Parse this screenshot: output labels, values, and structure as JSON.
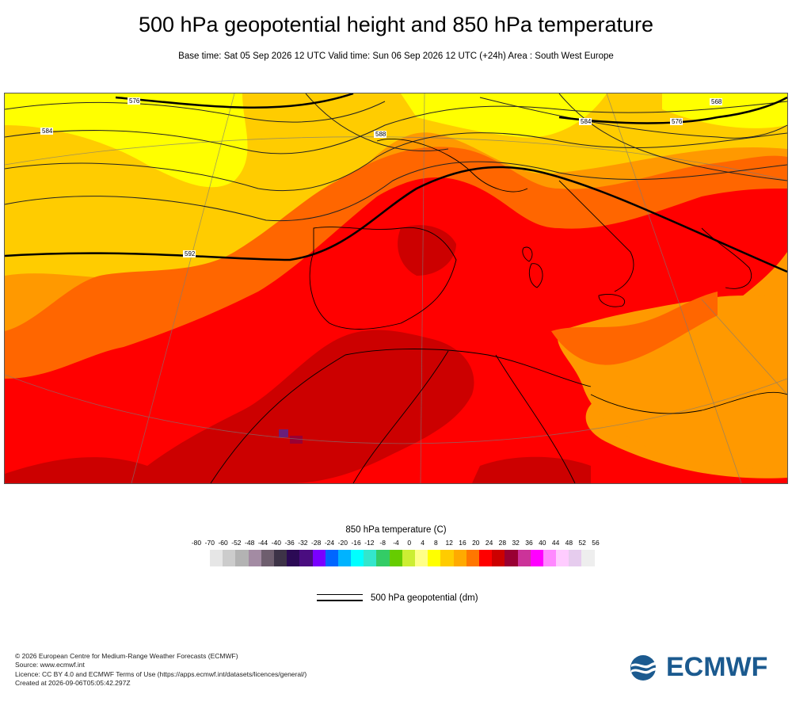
{
  "header": {
    "title": "500 hPa geopotential height and 850 hPa temperature",
    "subtitle": "Base time: Sat 05 Sep 2026 12 UTC Valid time: Sun 06 Sep 2026 12 UTC (+24h) Area : South West Europe"
  },
  "map": {
    "contour_labels": [
      "576",
      "584",
      "588",
      "592",
      "576",
      "584",
      "568"
    ],
    "temperature_fill_colors": {
      "yellow": "#ffff00",
      "light_orange": "#ffcc00",
      "orange": "#ff9900",
      "dark_orange": "#ff6600",
      "red": "#ff0000",
      "dark_red": "#cc0000",
      "maroon": "#990033",
      "purple": "#6a1f7a"
    }
  },
  "legend": {
    "title": "850 hPa temperature (C)",
    "ticks": [
      "-80",
      "-70",
      "-60",
      "-52",
      "-48",
      "-44",
      "-40",
      "-36",
      "-32",
      "-28",
      "-24",
      "-20",
      "-16",
      "-12",
      "-8",
      "-4",
      "0",
      "4",
      "8",
      "12",
      "16",
      "20",
      "24",
      "28",
      "32",
      "36",
      "40",
      "44",
      "48",
      "52",
      "56"
    ],
    "colors": [
      "#e6e6e6",
      "#cccccc",
      "#b3b3b3",
      "#a38ba3",
      "#6e5e6e",
      "#3d3347",
      "#2b0a55",
      "#4a0d80",
      "#7a00ff",
      "#0066ff",
      "#00b3ff",
      "#00ffff",
      "#33e6cc",
      "#33cc66",
      "#66cc00",
      "#ccee33",
      "#ffff88",
      "#ffff00",
      "#ffcc00",
      "#ffaa00",
      "#ff7700",
      "#ff0000",
      "#cc0000",
      "#990033",
      "#cc3399",
      "#ff00ff",
      "#ff88ff",
      "#ffccff",
      "#e6ccee",
      "#eeeeee"
    ],
    "geopotential_label": "500 hPa geopotential (dm)"
  },
  "footer": {
    "line1": "© 2026 European Centre for Medium-Range Weather Forecasts (ECMWF)",
    "line2": "Source: www.ecmwf.int",
    "line3": "Licence: CC BY 4.0 and ECMWF Terms of Use (https://apps.ecmwf.int/datasets/licences/general/)",
    "line4": "Created at 2026-09-06T05:05:42.297Z"
  },
  "logo": {
    "text": "ECMWF",
    "color": "#1b5a8f"
  }
}
